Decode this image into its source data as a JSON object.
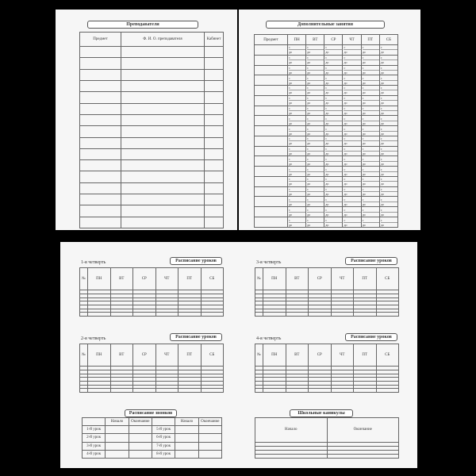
{
  "teachers": {
    "title": "Преподаватели",
    "columns": [
      "Предмет",
      "Ф. И. О. преподавателя",
      "Кабинет"
    ]
  },
  "extra": {
    "title": "Дополнительные занятия",
    "columns": [
      "Предмет",
      "ПН",
      "ВТ",
      "СР",
      "ЧТ",
      "ПТ",
      "СБ"
    ],
    "from": "с",
    "to": "до"
  },
  "schedule": {
    "title": "Расписание уроков",
    "columns": [
      "№",
      "ПН",
      "ВТ",
      "СР",
      "ЧТ",
      "ПТ",
      "СБ"
    ],
    "quarters": [
      "1-я четверть",
      "2-я четверть",
      "3-я четверть",
      "4-я четверть"
    ]
  },
  "bells": {
    "title": "Расписание звонков",
    "columns": [
      "Начало",
      "Окончание"
    ],
    "lessons": [
      "1-й урок",
      "2-й урок",
      "3-й урок",
      "4-й урок",
      "5-й урок",
      "6-й урок",
      "7-й урок",
      "8-й урок"
    ]
  },
  "holidays": {
    "title": "Школьные каникулы",
    "columns": [
      "Начало",
      "Окончание"
    ]
  }
}
